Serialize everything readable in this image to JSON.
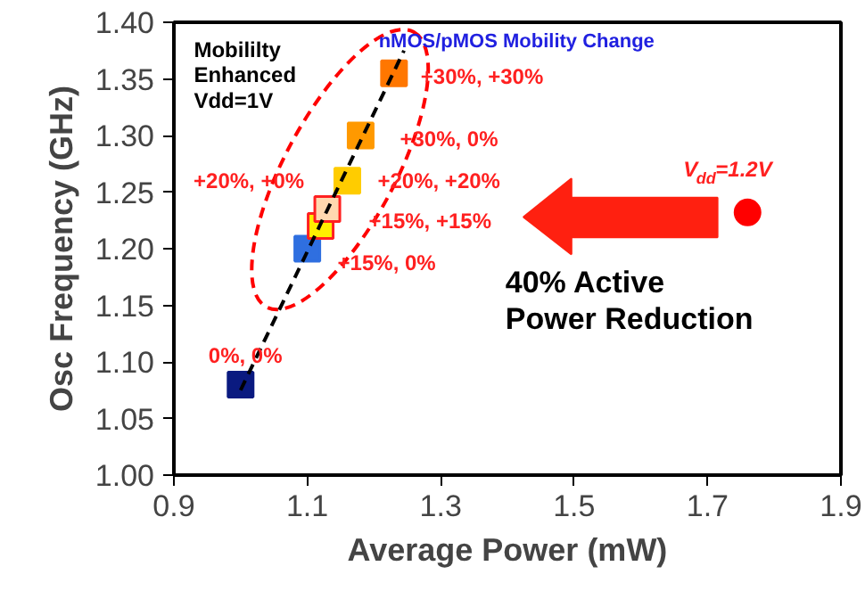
{
  "chart_data": {
    "type": "scatter",
    "xlabel": "Average Power (mW)",
    "ylabel": "Osc Frequency (GHz)",
    "xlim": [
      0.9,
      1.9
    ],
    "xticks": [
      0.9,
      1.1,
      1.3,
      1.5,
      1.7,
      1.9
    ],
    "ylim": [
      1.0,
      1.4
    ],
    "yticks": [
      {
        "value": 1.0,
        "label": "1.00"
      },
      {
        "value": 1.05,
        "label": "1.05"
      },
      {
        "value": 1.1,
        "label": "1.10"
      },
      {
        "value": 1.15,
        "label": "1.15"
      },
      {
        "value": 1.2,
        "label": "1.20"
      },
      {
        "value": 1.25,
        "label": "1.25"
      },
      {
        "value": 1.3,
        "label": "1.30"
      },
      {
        "value": 1.35,
        "label": "1.35"
      },
      {
        "value": 1.4,
        "label": "1.40"
      }
    ],
    "grid": false,
    "series": [
      {
        "marker": "square",
        "x": [
          1.0,
          1.1,
          1.12,
          1.13,
          1.16,
          1.18,
          1.23
        ],
        "values": [
          1.08,
          1.2,
          1.22,
          1.235,
          1.26,
          1.3,
          1.355
        ],
        "colors": [
          "#0a1a80",
          "#2f6fe0",
          "#ffee00",
          "#ffd8b0",
          "#ffcc00",
          "#ff9900",
          "#ff7700"
        ],
        "value_labels": [
          "0%, 0%",
          "+15%, 0%",
          "+15%, +15%",
          "+20%, +0%",
          "+20%, +20%",
          "+30%, 0%",
          "+30%, +30%"
        ]
      },
      {
        "type": "scatter",
        "marker": "circle",
        "x": [
          1.76
        ],
        "values": [
          1.232
        ],
        "color": "#ff0000",
        "value_labels": [
          "V$_{dd}$=1.2V"
        ]
      },
      {
        "type": "line",
        "line_style": "dashed",
        "x": [
          1.0,
          1.245
        ],
        "values": [
          1.075,
          1.375
        ],
        "color": "#000000"
      }
    ],
    "annotations": [
      "Mobililty Enhanced Vdd=1V",
      "nMOS/pMOS Mobility Change",
      "40% Active Power Reduction"
    ]
  }
}
